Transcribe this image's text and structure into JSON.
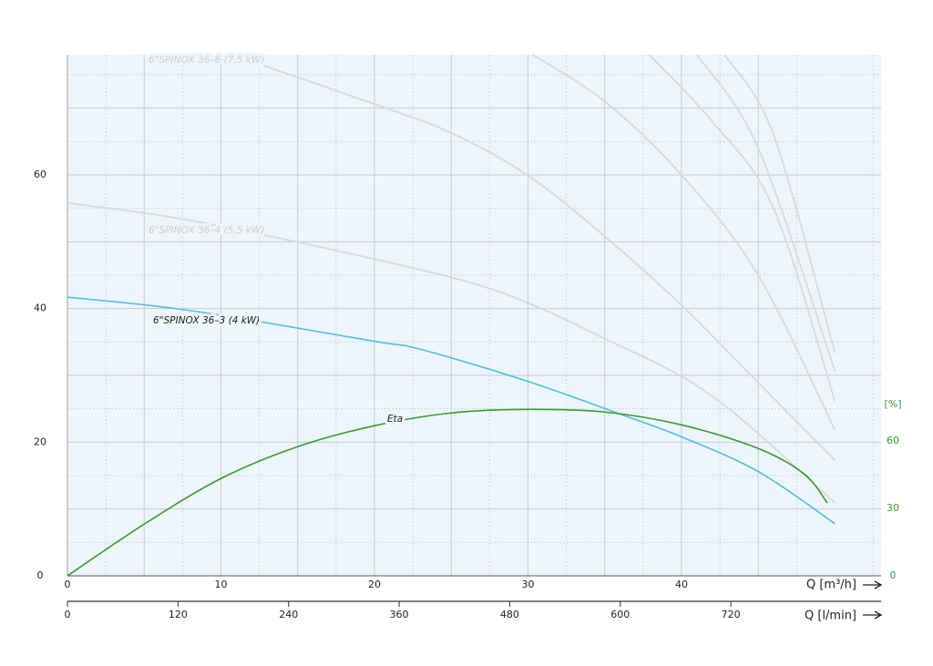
{
  "chart_data": {
    "type": "line",
    "xlabel": "Q [m³/h]",
    "x2label": "Q [l/min]",
    "y2label": "[%]",
    "xlim": [
      0,
      53
    ],
    "xticks": [
      0,
      10,
      20,
      30,
      40
    ],
    "x2lim": [
      0,
      883
    ],
    "x2ticks": [
      0,
      120,
      240,
      360,
      480,
      600,
      720
    ],
    "ylim": [
      0,
      78
    ],
    "yticks": [
      0,
      20,
      40,
      60
    ],
    "y2lim": [
      0,
      232
    ],
    "y2ticks": [
      0,
      30,
      60
    ],
    "grid": true,
    "series": [
      {
        "name": "6\"SPINOX 36–3 (4 kW)",
        "color": "#4dbfe6",
        "x": [
          0,
          8,
          20,
          23,
          30,
          36,
          40,
          45,
          50
        ],
        "values": [
          41.7,
          39.7,
          35.1,
          33.9,
          29.1,
          24.2,
          20.8,
          15.6,
          7.8
        ]
      },
      {
        "name": "6\"SPINOX 36–4 (5,5 kW)",
        "color": "#dadada",
        "x": [
          0,
          8,
          20,
          28,
          35,
          42,
          50
        ],
        "values": [
          55.8,
          53.2,
          47.4,
          42.6,
          35.5,
          26.9,
          10.9
        ]
      },
      {
        "name": "6\"SPINOX 36–6 (7,5 kW)",
        "color": "#dadada",
        "x": [
          12.5,
          20,
          25,
          30,
          35,
          40,
          45,
          50
        ],
        "values": [
          76.6,
          70.6,
          66.3,
          59.9,
          50.8,
          40.5,
          28.9,
          17.3
        ]
      },
      {
        "color": "#dadada",
        "x": [
          30.3,
          35,
          40,
          45,
          50
        ],
        "values": [
          78,
          71,
          60,
          45,
          21.8
        ]
      },
      {
        "color": "#dadada",
        "x": [
          37.9,
          42,
          46,
          50
        ],
        "values": [
          78,
          68,
          55,
          26.1
        ]
      },
      {
        "color": "#dadada",
        "x": [
          41,
          45,
          50
        ],
        "values": [
          78,
          64,
          30.6
        ]
      },
      {
        "color": "#dadada",
        "x": [
          42.8,
          46,
          50
        ],
        "values": [
          78,
          66,
          33.3
        ]
      },
      {
        "name": "Eta",
        "color": "#3a9a2e",
        "axis": "y2",
        "x": [
          0,
          5,
          10,
          15,
          20,
          25,
          30,
          35,
          40,
          45,
          48,
          49.5
        ],
        "values": [
          0,
          23,
          43.3,
          57.5,
          66.8,
          72.5,
          74.1,
          72.9,
          67.2,
          56.7,
          45.3,
          32.4
        ]
      }
    ]
  }
}
